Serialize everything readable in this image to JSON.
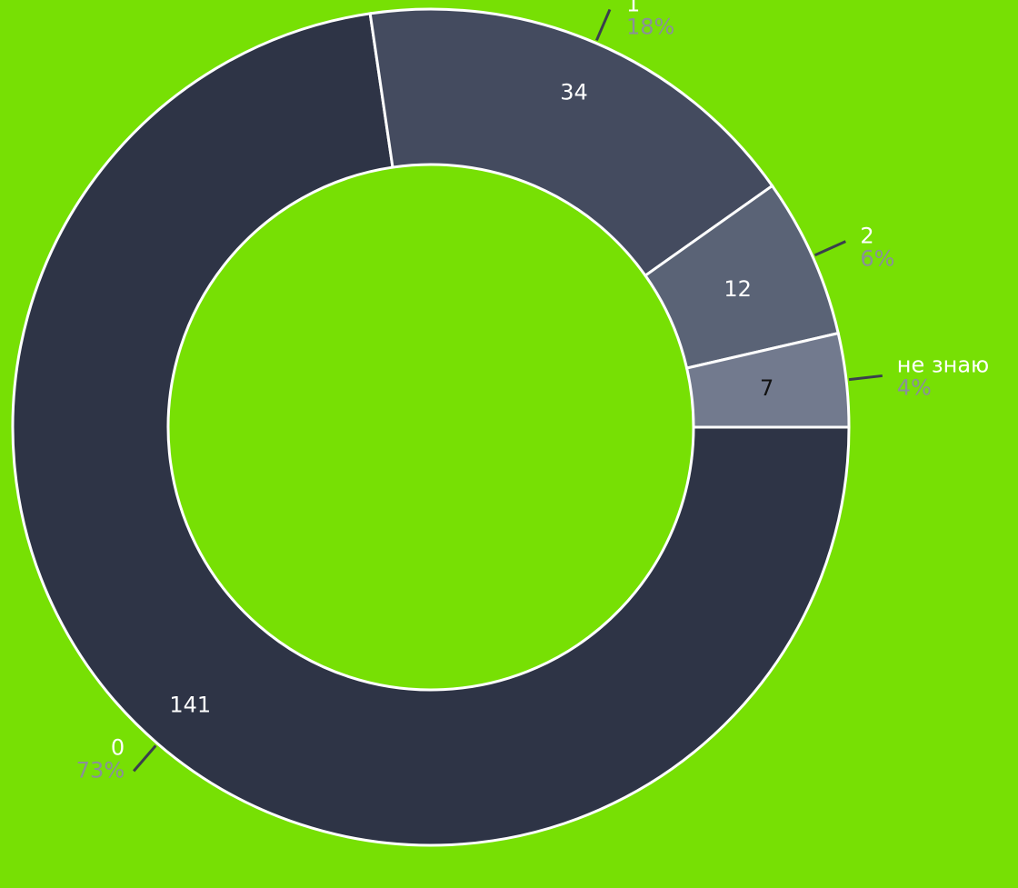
{
  "chart_data": {
    "type": "pie",
    "variant": "donut",
    "categories": [
      "0",
      "1",
      "2",
      "не знаю"
    ],
    "values": [
      141,
      34,
      12,
      7
    ],
    "percent_labels": [
      "73%",
      "18%",
      "6%",
      "4%"
    ],
    "colors": [
      "#2e3446",
      "#444b5f",
      "#5a6376",
      "#727a8e"
    ],
    "value_label_colors": [
      "#ffffff",
      "#ffffff",
      "#ffffff",
      "#111111"
    ],
    "background": "#77e004",
    "leader_line_color": "#3a3f4d",
    "percent_color": "#8a8f9a",
    "legend": "none"
  }
}
